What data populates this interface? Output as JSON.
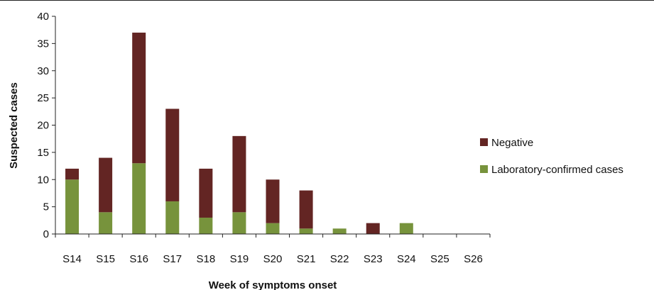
{
  "chart_data": {
    "type": "bar",
    "stacked": true,
    "title": "",
    "xlabel": "Week of symptoms onset",
    "ylabel": "Suspected cases",
    "categories": [
      "S14",
      "S15",
      "S16",
      "S17",
      "S18",
      "S19",
      "S20",
      "S21",
      "S22",
      "S23",
      "S24",
      "S25",
      "S26"
    ],
    "series": [
      {
        "name": "Laboratory-confirmed cases",
        "color": "#77933c",
        "values": [
          10,
          4,
          13,
          6,
          3,
          4,
          2,
          1,
          1,
          0,
          2,
          0,
          0
        ]
      },
      {
        "name": "Negative",
        "color": "#632523",
        "values": [
          2,
          10,
          24,
          17,
          9,
          14,
          8,
          7,
          0,
          2,
          0,
          0,
          0
        ]
      }
    ],
    "yticks": [
      0,
      5,
      10,
      15,
      20,
      25,
      30,
      35,
      40
    ],
    "ylim": [
      0,
      40
    ],
    "grid": false,
    "legend": "right"
  }
}
